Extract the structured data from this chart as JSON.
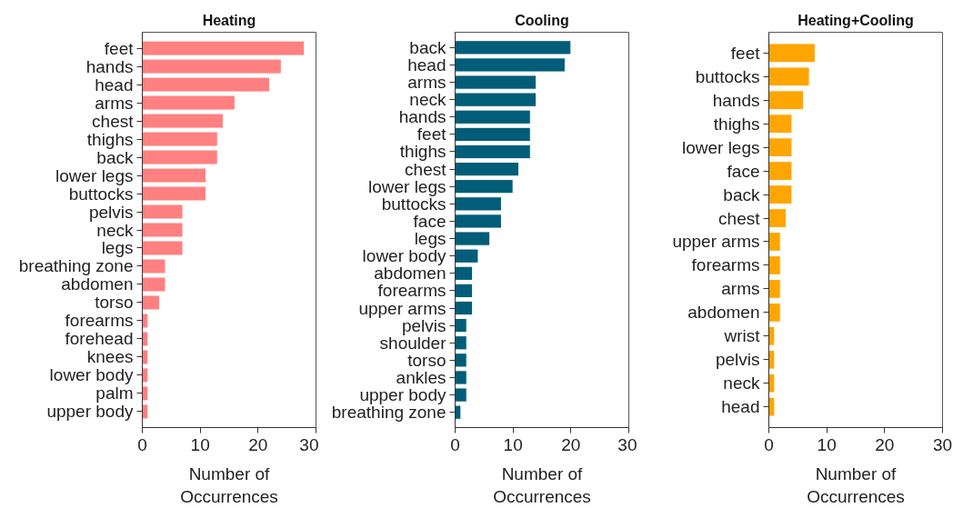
{
  "chart_data": [
    {
      "type": "bar",
      "orientation": "horizontal",
      "title": "Heating",
      "xlabel": "Number of Occurrences",
      "categories": [
        "feet",
        "hands",
        "head",
        "arms",
        "chest",
        "thighs",
        "back",
        "lower legs",
        "buttocks",
        "pelvis",
        "neck",
        "legs",
        "breathing zone",
        "abdomen",
        "torso",
        "forearms",
        "forehead",
        "knees",
        "lower body",
        "palm",
        "upper body"
      ],
      "values": [
        28,
        24,
        22,
        16,
        14,
        13,
        13,
        11,
        11,
        7,
        7,
        7,
        4,
        4,
        3,
        1,
        1,
        1,
        1,
        1,
        1
      ],
      "color": "#ff8080",
      "xlim": [
        0,
        30
      ],
      "xticks": [
        0,
        10,
        20,
        30
      ]
    },
    {
      "type": "bar",
      "orientation": "horizontal",
      "title": "Cooling",
      "xlabel": "Number of Occurrences",
      "categories": [
        "back",
        "head",
        "arms",
        "neck",
        "hands",
        "feet",
        "thighs",
        "chest",
        "lower legs",
        "buttocks",
        "face",
        "legs",
        "lower body",
        "abdomen",
        "forearms",
        "upper arms",
        "pelvis",
        "shoulder",
        "torso",
        "ankles",
        "upper body",
        "breathing zone"
      ],
      "values": [
        20,
        19,
        14,
        14,
        13,
        13,
        13,
        11,
        10,
        8,
        8,
        6,
        4,
        3,
        3,
        3,
        2,
        2,
        2,
        2,
        2,
        1
      ],
      "color": "#025d79",
      "xlim": [
        0,
        30
      ],
      "xticks": [
        0,
        10,
        20,
        30
      ]
    },
    {
      "type": "bar",
      "orientation": "horizontal",
      "title": "Heating+Cooling",
      "xlabel": "Number of Occurrences",
      "categories": [
        "feet",
        "buttocks",
        "hands",
        "thighs",
        "lower legs",
        "face",
        "back",
        "chest",
        "upper arms",
        "forearms",
        "arms",
        "abdomen",
        "wrist",
        "pelvis",
        "neck",
        "head"
      ],
      "values": [
        8,
        7,
        6,
        4,
        4,
        4,
        4,
        3,
        2,
        2,
        2,
        2,
        1,
        1,
        1,
        1
      ],
      "color": "#ffa500",
      "xlim": [
        0,
        30
      ],
      "xticks": [
        0,
        10,
        20,
        30
      ]
    }
  ]
}
